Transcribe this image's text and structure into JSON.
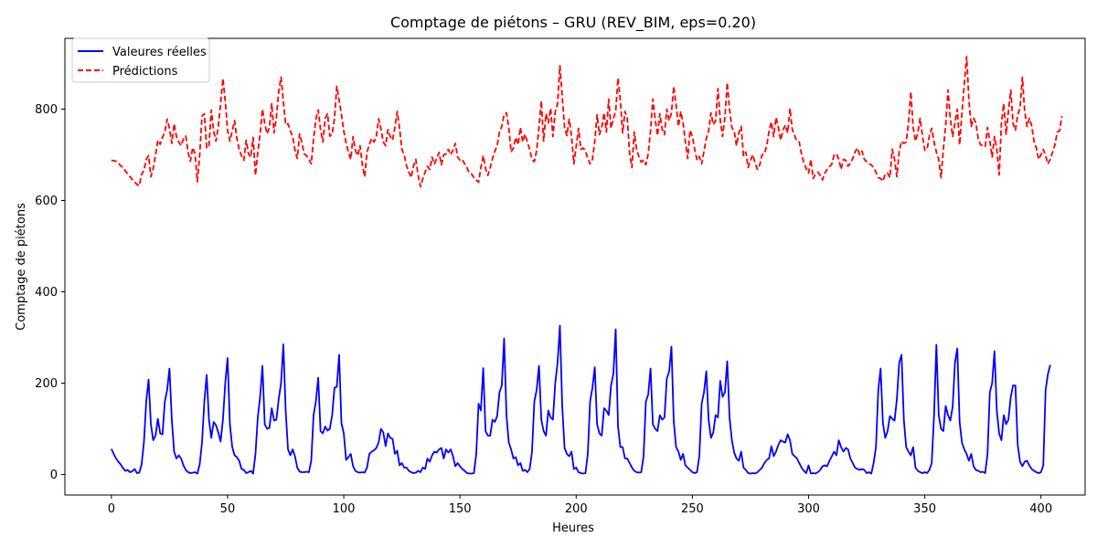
{
  "chart_data": {
    "type": "line",
    "title": "Comptage de piétons – GRU (REV_BIM, eps=0.20)",
    "xlabel": "Heures",
    "ylabel": "Comptage de piétons",
    "xlim": [
      -20,
      419
    ],
    "ylim": [
      -45,
      955
    ],
    "xticks": [
      0,
      50,
      100,
      150,
      200,
      250,
      300,
      350,
      400
    ],
    "yticks": [
      0,
      200,
      400,
      600,
      800
    ],
    "grid": false,
    "legend_position": "upper-left",
    "series": [
      {
        "name": "Valeures réelles",
        "color": "#0000ff",
        "style": "solid",
        "x_start": 0,
        "x_step": 1,
        "values": [
          56,
          45,
          35,
          28,
          22,
          14,
          8,
          10,
          5,
          7,
          12,
          3,
          4,
          22,
          70,
          160,
          208,
          110,
          75,
          85,
          122,
          90,
          88,
          160,
          185,
          232,
          120,
          50,
          35,
          42,
          35,
          20,
          10,
          5,
          3,
          4,
          5,
          2,
          22,
          70,
          160,
          218,
          120,
          80,
          115,
          108,
          92,
          72,
          120,
          200,
          255,
          110,
          60,
          42,
          38,
          30,
          12,
          10,
          3,
          5,
          8,
          2,
          45,
          125,
          170,
          238,
          110,
          100,
          102,
          145,
          118,
          120,
          165,
          200,
          285,
          140,
          55,
          42,
          55,
          40,
          15,
          6,
          5,
          5,
          6,
          5,
          30,
          130,
          160,
          212,
          95,
          90,
          105,
          96,
          100,
          130,
          190,
          192,
          262,
          112,
          90,
          32,
          38,
          45,
          18,
          8,
          5,
          4,
          5,
          4,
          15,
          45,
          50,
          53,
          58,
          70,
          100,
          92,
          62,
          90,
          80,
          78,
          45,
          52,
          20,
          25,
          15,
          15,
          8,
          5,
          3,
          4,
          8,
          5,
          15,
          12,
          35,
          28,
          42,
          50,
          48,
          55,
          58,
          35,
          55,
          48,
          55,
          40,
          18,
          25,
          18,
          12,
          8,
          3,
          2,
          2,
          3,
          45,
          155,
          140,
          233,
          95,
          85,
          85,
          120,
          115,
          128,
          180,
          195,
          298,
          130,
          70,
          55,
          35,
          38,
          20,
          25,
          8,
          10,
          5,
          12,
          50,
          160,
          185,
          238,
          120,
          95,
          85,
          140,
          125,
          120,
          200,
          245,
          326,
          150,
          58,
          45,
          40,
          50,
          12,
          15,
          5,
          3,
          2,
          3,
          45,
          160,
          190,
          235,
          110,
          90,
          85,
          145,
          140,
          130,
          195,
          220,
          318,
          106,
          60,
          60,
          35,
          35,
          25,
          15,
          8,
          5,
          4,
          5,
          40,
          160,
          175,
          232,
          110,
          100,
          95,
          130,
          120,
          125,
          210,
          225,
          280,
          115,
          60,
          50,
          32,
          45,
          20,
          15,
          10,
          5,
          3,
          5,
          40,
          155,
          180,
          226,
          120,
          80,
          92,
          130,
          125,
          205,
          170,
          180,
          248,
          125,
          75,
          48,
          35,
          30,
          50,
          15,
          10,
          3,
          2,
          3,
          2,
          5,
          10,
          15,
          25,
          32,
          35,
          62,
          40,
          50,
          65,
          75,
          72,
          70,
          88,
          75,
          45,
          40,
          35,
          25,
          15,
          8,
          3,
          20,
          2,
          3,
          2,
          5,
          10,
          18,
          20,
          18,
          30,
          40,
          50,
          42,
          75,
          60,
          50,
          58,
          55,
          35,
          25,
          15,
          12,
          10,
          12,
          10,
          3,
          5,
          2,
          25,
          60,
          185,
          232,
          112,
          80,
          95,
          128,
          122,
          118,
          165,
          245,
          262,
          120,
          60,
          50,
          42,
          60,
          15,
          8,
          5,
          3,
          5,
          3,
          10,
          25,
          130,
          284,
          130,
          100,
          95,
          150,
          130,
          118,
          148,
          245,
          276,
          115,
          70,
          55,
          45,
          30,
          45,
          18,
          10,
          8,
          5,
          6,
          3,
          45,
          180,
          200,
          270,
          140,
          90,
          75,
          130,
          110,
          120,
          170,
          195,
          195,
          65,
          28,
          18,
          28,
          30,
          20,
          12,
          8,
          5,
          3,
          5,
          20,
          185,
          220,
          240
        ]
      },
      {
        "name": "Prédictions",
        "color": "#ff0000",
        "style": "dashed",
        "x_start": 0,
        "x_step": 1,
        "values": [
          688,
          687,
          686,
          682,
          676,
          672,
          665,
          658,
          652,
          646,
          641,
          635,
          632,
          658,
          665,
          690,
          698,
          652,
          670,
          700,
          732,
          723,
          738,
          750,
          778,
          758,
          725,
          768,
          740,
          728,
          720,
          735,
          741,
          706,
          686,
          716,
          702,
          641,
          700,
          785,
          790,
          715,
          720,
          798,
          752,
          730,
          762,
          812,
          867,
          818,
          754,
          730,
          752,
          775,
          736,
          712,
          698,
          688,
          732,
          702,
          695,
          738,
          655,
          706,
          745,
          800,
          768,
          746,
          760,
          812,
          748,
          782,
          838,
          870,
          816,
          766,
          768,
          752,
          740,
          710,
          692,
          746,
          726,
          702,
          698,
          690,
          680,
          735,
          778,
          798,
          755,
          728,
          780,
          790,
          741,
          745,
          780,
          850,
          820,
          788,
          752,
          726,
          706,
          690,
          740,
          710,
          698,
          720,
          678,
          652,
          706,
          723,
          736,
          728,
          740,
          779,
          756,
          728,
          720,
          755,
          740,
          732,
          760,
          795,
          758,
          712,
          700,
          676,
          662,
          650,
          675,
          690,
          655,
          630,
          648,
          662,
          675,
          668,
          695,
          680,
          692,
          705,
          678,
          700,
          702,
          712,
          700,
          710,
          725,
          695,
          688,
          690,
          680,
          672,
          660,
          658,
          650,
          645,
          640,
          672,
          698,
          670,
          655,
          672,
          692,
          708,
          720,
          750,
          762,
          788,
          792,
          760,
          706,
          715,
          738,
          722,
          760,
          728,
          745,
          728,
          712,
          690,
          685,
          710,
          760,
          818,
          730,
          790,
          770,
          802,
          740,
          795,
          812,
          895,
          828,
          760,
          742,
          778,
          742,
          680,
          718,
          758,
          712,
          715,
          708,
          692,
          680,
          690,
          730,
          788,
          744,
          760,
          792,
          750,
          822,
          758,
          780,
          795,
          868,
          820,
          748,
          795,
          780,
          702,
          672,
          750,
          712,
          696,
          684,
          688,
          678,
          702,
          752,
          822,
          778,
          742,
          790,
          756,
          744,
          800,
          775,
          792,
          850,
          808,
          762,
          795,
          770,
          728,
          692,
          754,
          740,
          712,
          688,
          696,
          680,
          708,
          736,
          752,
          792,
          766,
          775,
          845,
          776,
          740,
          782,
          858,
          800,
          760,
          752,
          720,
          748,
          762,
          698,
          706,
          672,
          688,
          700,
          682,
          668,
          678,
          700,
          702,
          720,
          752,
          772,
          740,
          782,
          760,
          732,
          754,
          765,
          748,
          802,
          755,
          742,
          730,
          728,
          700,
          682,
          670,
          660,
          690,
          648,
          658,
          662,
          655,
          645,
          660,
          668,
          674,
          680,
          700,
          702,
          690,
          668,
          690,
          688,
          675,
          682,
          692,
          706,
          715,
          700,
          708,
          690,
          685,
          680,
          678,
          672,
          662,
          650,
          648,
          642,
          658,
          660,
          650,
          712,
          690,
          652,
          708,
          730,
          725,
          728,
          770,
          838,
          760,
          730,
          748,
          780,
          742,
          710,
          712,
          742,
          758,
          728,
          706,
          690,
          650,
          712,
          765,
          842,
          780,
          740,
          770,
          800,
          722,
          792,
          855,
          915,
          820,
          762,
          780,
          770,
          735,
          722,
          720,
          718,
          760,
          730,
          695,
          740,
          712,
          656,
          770,
          812,
          745,
          795,
          842,
          768,
          754,
          788,
          802,
          870,
          795,
          762,
          780,
          764,
          730,
          715,
          690,
          700,
          712,
          698,
          680,
          690,
          706,
          722,
          750,
          752,
          785
        ]
      }
    ]
  }
}
